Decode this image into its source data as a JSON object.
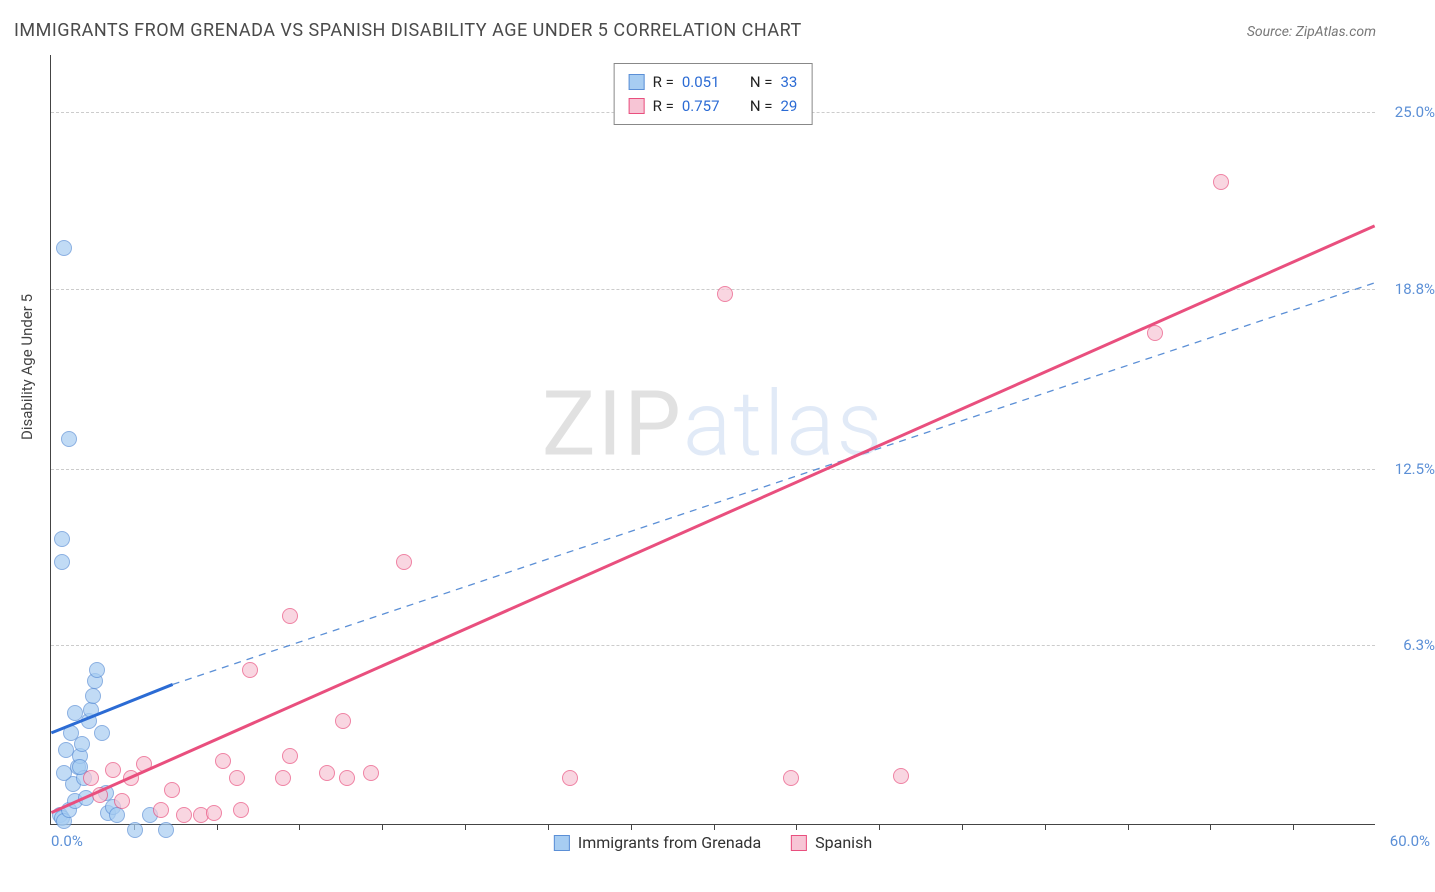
{
  "title": "IMMIGRANTS FROM GRENADA VS SPANISH DISABILITY AGE UNDER 5 CORRELATION CHART",
  "source_label": "Source: ",
  "source_name": "ZipAtlas.com",
  "ylabel": "Disability Age Under 5",
  "watermark_zip": "ZIP",
  "watermark_atlas": "atlas",
  "chart": {
    "type": "scatter",
    "background_color": "#ffffff",
    "grid_color": "#cccccc",
    "axis_color": "#444444",
    "tick_label_color": "#5b8fd6",
    "xlim": [
      0,
      60
    ],
    "ylim": [
      0,
      27
    ],
    "x_ticks_minor": [
      3.75,
      7.5,
      11.25,
      15,
      18.75,
      22.5,
      26.25,
      30,
      33.75,
      37.5,
      41.25,
      45,
      48.75,
      52.5,
      56.25
    ],
    "y_ticks": [
      {
        "v": 6.3,
        "label": "6.3%"
      },
      {
        "v": 12.5,
        "label": "12.5%"
      },
      {
        "v": 18.8,
        "label": "18.8%"
      },
      {
        "v": 25.0,
        "label": "25.0%"
      }
    ],
    "x_tick_left": "0.0%",
    "x_tick_right": "60.0%",
    "series": [
      {
        "name": "Immigrants from Grenada",
        "color_fill": "#a7cdf2",
        "color_stroke": "#5b8fd6",
        "marker_size": 16,
        "R": "0.051",
        "N": "33",
        "regression": {
          "x1": 0,
          "y1": 3.2,
          "x2": 5.5,
          "y2": 4.9,
          "dash": false,
          "color": "#2b6bd4",
          "width": 3
        },
        "regression_ext": {
          "x1": 5.5,
          "y1": 4.9,
          "x2": 60,
          "y2": 19.0,
          "dash": true,
          "color": "#5b8fd6",
          "width": 1.3
        },
        "points": [
          [
            0.4,
            0.3
          ],
          [
            0.5,
            0.2
          ],
          [
            0.6,
            0.1
          ],
          [
            0.8,
            0.5
          ],
          [
            1.0,
            1.4
          ],
          [
            1.1,
            0.8
          ],
          [
            1.2,
            2.0
          ],
          [
            1.3,
            2.4
          ],
          [
            1.4,
            2.8
          ],
          [
            1.5,
            1.6
          ],
          [
            1.6,
            0.9
          ],
          [
            1.7,
            3.6
          ],
          [
            1.8,
            4.0
          ],
          [
            1.9,
            4.5
          ],
          [
            2.0,
            5.0
          ],
          [
            2.1,
            5.4
          ],
          [
            2.3,
            3.2
          ],
          [
            2.5,
            1.1
          ],
          [
            2.6,
            0.4
          ],
          [
            2.8,
            0.6
          ],
          [
            3.0,
            0.3
          ],
          [
            0.9,
            3.2
          ],
          [
            1.1,
            3.9
          ],
          [
            1.3,
            2.0
          ],
          [
            0.6,
            1.8
          ],
          [
            0.7,
            2.6
          ],
          [
            3.8,
            -0.2
          ],
          [
            5.2,
            -0.2
          ],
          [
            4.5,
            0.3
          ],
          [
            0.5,
            10.0
          ],
          [
            0.5,
            9.2
          ],
          [
            0.8,
            13.5
          ],
          [
            0.6,
            20.2
          ]
        ]
      },
      {
        "name": "Spanish",
        "color_fill": "#f7c5d5",
        "color_stroke": "#e94f7e",
        "marker_size": 16,
        "R": "0.757",
        "N": "29",
        "regression": {
          "x1": 0,
          "y1": 0.4,
          "x2": 60,
          "y2": 21.0,
          "dash": false,
          "color": "#e94f7e",
          "width": 3
        },
        "points": [
          [
            1.8,
            1.6
          ],
          [
            2.2,
            1.0
          ],
          [
            2.8,
            1.9
          ],
          [
            3.2,
            0.8
          ],
          [
            3.6,
            1.6
          ],
          [
            4.2,
            2.1
          ],
          [
            5.0,
            0.5
          ],
          [
            5.5,
            1.2
          ],
          [
            6.0,
            0.3
          ],
          [
            6.8,
            0.3
          ],
          [
            7.4,
            0.4
          ],
          [
            7.8,
            2.2
          ],
          [
            8.4,
            1.6
          ],
          [
            8.6,
            0.5
          ],
          [
            9.0,
            5.4
          ],
          [
            10.5,
            1.6
          ],
          [
            10.8,
            7.3
          ],
          [
            12.5,
            1.8
          ],
          [
            13.2,
            3.6
          ],
          [
            13.4,
            1.6
          ],
          [
            14.5,
            1.8
          ],
          [
            16.0,
            9.2
          ],
          [
            23.5,
            1.6
          ],
          [
            10.8,
            2.4
          ],
          [
            33.5,
            1.6
          ],
          [
            38.5,
            1.7
          ],
          [
            30.5,
            18.6
          ],
          [
            50.0,
            17.2
          ],
          [
            53.0,
            22.5
          ]
        ]
      }
    ]
  }
}
